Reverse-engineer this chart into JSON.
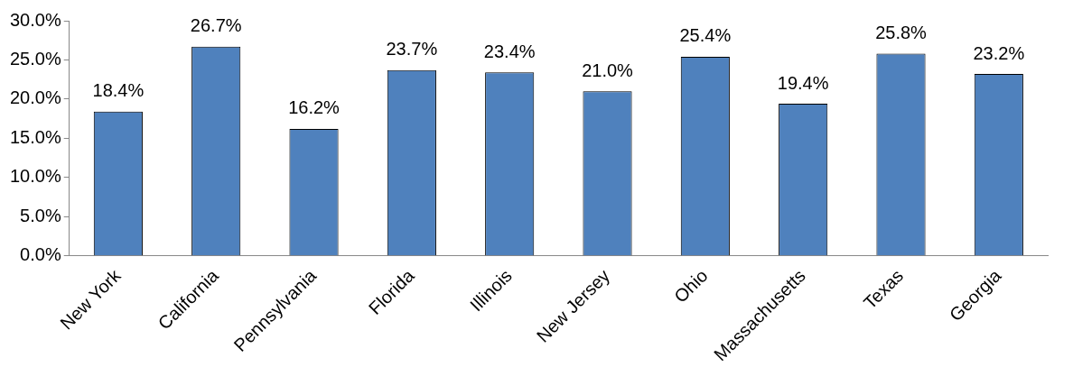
{
  "chart_data": {
    "type": "bar",
    "categories": [
      "New York",
      "California",
      "Pennsylvania",
      "Florida",
      "Illinois",
      "New Jersey",
      "Ohio",
      "Massachusetts",
      "Texas",
      "Georgia"
    ],
    "values": [
      18.4,
      26.7,
      16.2,
      23.7,
      23.4,
      21.0,
      25.4,
      19.4,
      25.8,
      23.2
    ],
    "value_labels": [
      "18.4%",
      "26.7%",
      "16.2%",
      "23.7%",
      "23.4%",
      "21.0%",
      "25.4%",
      "19.4%",
      "25.8%",
      "23.2%"
    ],
    "color": "#4f81bd",
    "ylim": [
      0,
      30
    ],
    "yticks": [
      {
        "value": 0,
        "label": "0.0%"
      },
      {
        "value": 5,
        "label": "5.0%"
      },
      {
        "value": 10,
        "label": "10.0%"
      },
      {
        "value": 15,
        "label": "15.0%"
      },
      {
        "value": 20,
        "label": "20.0%"
      },
      {
        "value": 25,
        "label": "25.0%"
      },
      {
        "value": 30,
        "label": "30.0%"
      }
    ],
    "grid": false,
    "legend": false
  }
}
